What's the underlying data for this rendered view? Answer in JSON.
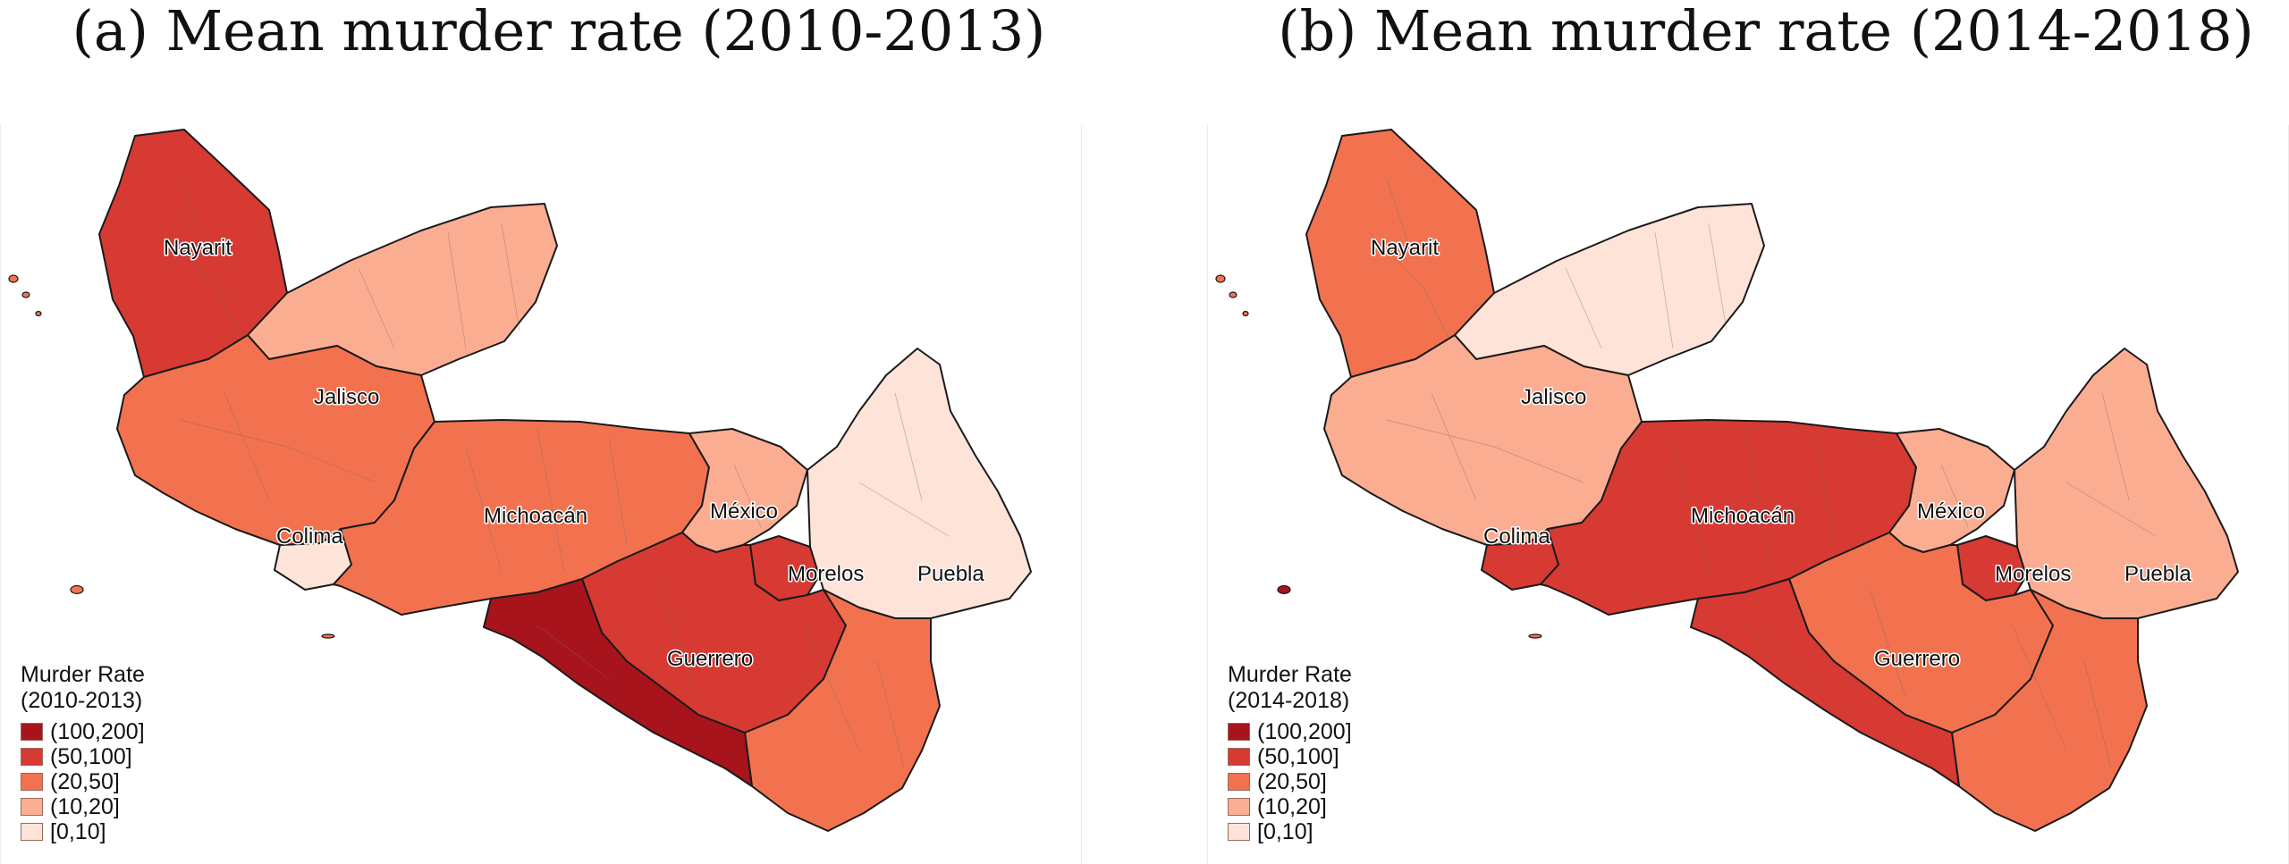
{
  "palette": {
    "c100_200": "#a7141b",
    "c50_100": "#d63a33",
    "c20_50": "#f2724f",
    "c10_20": "#fbad92",
    "c0_10": "#fde3d8",
    "border_district": "#7a6a66",
    "border_state": "#1a1a1a"
  },
  "panels": [
    {
      "id": "a",
      "title": "(a) Mean murder rate (2010-2013)",
      "legend": {
        "title_line1": "Murder Rate",
        "title_line2": "(2010-2013)",
        "items": [
          {
            "label": "(100,200]",
            "color": "#a7141b"
          },
          {
            "label": "(50,100]",
            "color": "#d63a33"
          },
          {
            "label": "(20,50]",
            "color": "#f2724f"
          },
          {
            "label": "(10,20]",
            "color": "#fbad92"
          },
          {
            "label": "[0,10]",
            "color": "#fde3d8"
          }
        ]
      },
      "states": {
        "nayarit": "Nayarit",
        "jalisco": "Jalisco",
        "colima": "Colima",
        "michoacan": "Michoacán",
        "mexico": "México",
        "morelos": "Morelos",
        "puebla": "Puebla",
        "guerrero": "Guerrero"
      },
      "fills": {
        "nayarit": "#d63a33",
        "jalisco": "#f2724f",
        "jalisco_north": "#fbad92",
        "colima": "#fde3d8",
        "michoacan": "#f2724f",
        "mexico": "#fbad92",
        "morelos": "#d63a33",
        "puebla": "#fde3d8",
        "guerrero": "#f2724f",
        "guerrero_coast": "#a7141b",
        "guerrero_mid": "#d63a33"
      }
    },
    {
      "id": "b",
      "title": "(b) Mean murder rate (2014-2018)",
      "legend": {
        "title_line1": "Murder Rate",
        "title_line2": "(2014-2018)",
        "items": [
          {
            "label": "(100,200]",
            "color": "#a7141b"
          },
          {
            "label": "(50,100]",
            "color": "#d63a33"
          },
          {
            "label": "(20,50]",
            "color": "#f2724f"
          },
          {
            "label": "(10,20]",
            "color": "#fbad92"
          },
          {
            "label": "[0,10]",
            "color": "#fde3d8"
          }
        ]
      },
      "states": {
        "nayarit": "Nayarit",
        "jalisco": "Jalisco",
        "colima": "Colima",
        "michoacan": "Michoacán",
        "mexico": "México",
        "morelos": "Morelos",
        "puebla": "Puebla",
        "guerrero": "Guerrero"
      },
      "fills": {
        "nayarit": "#f2724f",
        "jalisco": "#fbad92",
        "jalisco_north": "#fde3d8",
        "colima": "#d63a33",
        "michoacan": "#d63a33",
        "mexico": "#fbad92",
        "morelos": "#d63a33",
        "puebla": "#fbad92",
        "guerrero": "#f2724f",
        "guerrero_coast": "#d63a33",
        "guerrero_mid": "#f2724f"
      }
    }
  ]
}
